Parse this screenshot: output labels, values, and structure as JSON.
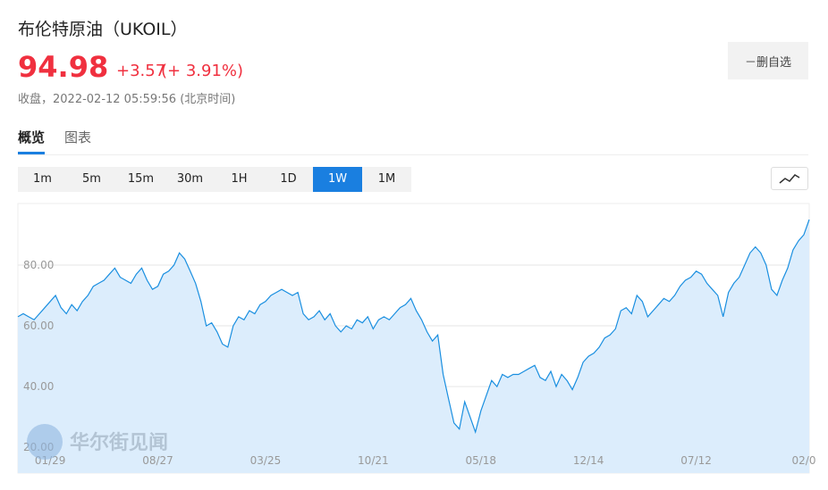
{
  "header": {
    "title": "布伦特原油（UKOIL）",
    "price": "94.98",
    "change": "+3.57",
    "change_pct": "(+ 3.91%)",
    "status": "收盘，2022-02-12 05:59:56 (北京时间)",
    "watch_button": "－删自选"
  },
  "tabs": [
    "概览",
    "图表"
  ],
  "intervals": {
    "items": [
      "1m",
      "5m",
      "15m",
      "30m",
      "1H",
      "1D",
      "1W",
      "1M"
    ],
    "selected": 6
  },
  "watermark": "华尔街见闻",
  "chart_data": {
    "type": "area",
    "color": "#1a8fe0",
    "fill": "#dcedfc",
    "grid": true,
    "categories": [
      null,
      null,
      null,
      null,
      null,
      null,
      "01/29",
      null,
      null,
      null,
      null,
      null,
      null,
      null,
      null,
      null,
      null,
      null,
      null,
      null,
      null,
      null,
      null,
      null,
      null,
      null,
      "08/27",
      null,
      null,
      null,
      null,
      null,
      null,
      null,
      null,
      null,
      null,
      null,
      null,
      null,
      null,
      null,
      null,
      null,
      null,
      null,
      "03/25",
      null,
      null,
      null,
      null,
      null,
      null,
      null,
      null,
      null,
      null,
      null,
      null,
      null,
      null,
      null,
      null,
      null,
      null,
      null,
      "10/21",
      null,
      null,
      null,
      null,
      null,
      null,
      null,
      null,
      null,
      null,
      null,
      null,
      null,
      null,
      null,
      null,
      null,
      null,
      null,
      "05/18",
      null,
      null,
      null,
      null,
      null,
      null,
      null,
      null,
      null,
      null,
      null,
      null,
      null,
      null,
      null,
      null,
      null,
      null,
      null,
      "12/14",
      null,
      null,
      null,
      null,
      null,
      null,
      null,
      null,
      null,
      null,
      null,
      null,
      null,
      null,
      null,
      null,
      null,
      null,
      null,
      "07/12",
      null,
      null,
      null,
      null,
      null,
      null,
      null,
      null,
      null,
      null,
      null,
      null,
      null,
      null,
      null,
      null,
      null,
      null,
      null,
      "02/0",
      null
    ],
    "values": [
      63,
      64,
      63,
      62,
      64,
      66,
      68,
      70,
      66,
      64,
      67,
      65,
      68,
      70,
      73,
      74,
      75,
      77,
      79,
      76,
      75,
      74,
      77,
      79,
      75,
      72,
      73,
      77,
      78,
      80,
      84,
      82,
      78,
      74,
      68,
      60,
      61,
      58,
      54,
      53,
      60,
      63,
      62,
      65,
      64,
      67,
      68,
      70,
      71,
      72,
      71,
      70,
      71,
      64,
      62,
      63,
      65,
      62,
      64,
      60,
      58,
      60,
      59,
      62,
      61,
      63,
      59,
      62,
      63,
      62,
      64,
      66,
      67,
      69,
      65,
      62,
      58,
      55,
      57,
      44,
      36,
      28,
      26,
      35,
      30,
      25,
      32,
      37,
      42,
      40,
      44,
      43,
      44,
      44,
      45,
      46,
      47,
      43,
      42,
      45,
      40,
      44,
      42,
      39,
      43,
      48,
      50,
      51,
      53,
      56,
      57,
      59,
      65,
      66,
      64,
      70,
      68,
      63,
      65,
      67,
      69,
      68,
      70,
      73,
      75,
      76,
      78,
      77,
      74,
      72,
      70,
      63,
      71,
      74,
      76,
      80,
      84,
      86,
      84,
      80,
      72,
      70,
      75,
      79,
      85,
      88,
      90,
      95
    ],
    "ylim": [
      11.5,
      100.3
    ],
    "yticks": [
      {
        "value": 20,
        "label": "20.00"
      },
      {
        "value": 40,
        "label": "40.00"
      },
      {
        "value": 60,
        "label": "60.00"
      },
      {
        "value": 80,
        "label": "80.00"
      }
    ]
  }
}
